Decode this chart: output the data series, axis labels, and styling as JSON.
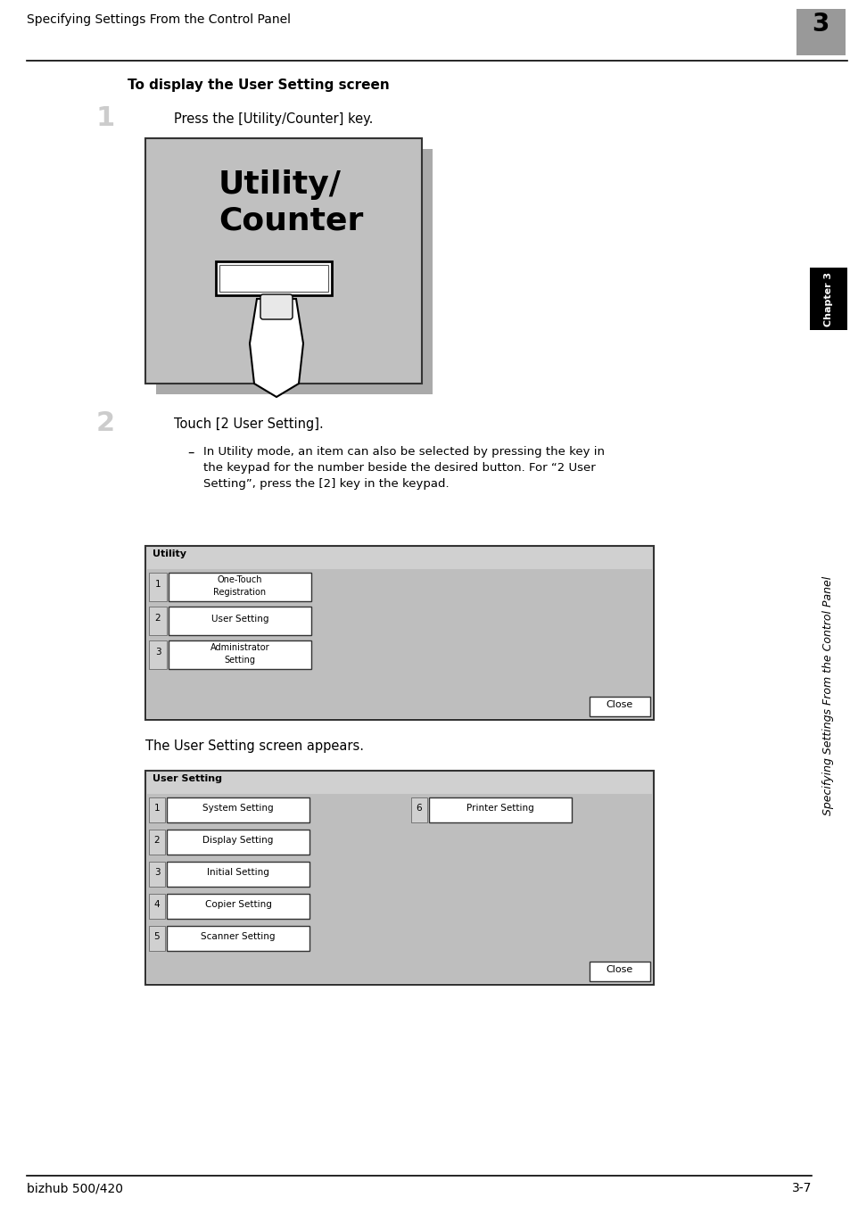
{
  "bg_color": "#ffffff",
  "header_text": "Specifying Settings From the Control Panel",
  "header_chapter": "3",
  "footer_left": "bizhub 500/420",
  "footer_right": "3-7",
  "title_bold": "To display the User Setting screen",
  "step1_num": "1",
  "step1_text": "Press the [Utility/Counter] key.",
  "step2_num": "2",
  "step2_text": "Touch [2 User Setting].",
  "step2_sub_dash": "–",
  "step2_sub_lines": [
    "In Utility mode, an item can also be selected by pressing the key in",
    "the keypad for the number beside the desired button. For “2 User",
    "Setting”, press the [2] key in the keypad."
  ],
  "utility_label1": "Utility/",
  "utility_label2": "Counter",
  "utility_menu_title": "Utility",
  "utility_menu_items": [
    "One-Touch\nRegistration",
    "User Setting",
    "Administrator\nSetting"
  ],
  "user_setting_title": "User Setting",
  "user_setting_left": [
    "System Setting",
    "Display Setting",
    "Initial Setting",
    "Copier Setting",
    "Scanner Setting"
  ],
  "user_setting_right_num": "6",
  "user_setting_right_item": "Printer Setting",
  "appears_text": "The User Setting screen appears.",
  "sidebar_text": "Specifying Settings From the Control Panel",
  "sidebar_chapter": "Chapter 3",
  "sidebar_bg": "#000000",
  "sidebar_chapter_color": "#ffffff",
  "step_num_color": "#cccccc",
  "screen_bg": "#c8c8c8",
  "screen_border": "#000000",
  "menu_bg": "#d8d8d8",
  "menu_item_bg": "#ffffff",
  "menu_item_border": "#555555",
  "close_btn_bg": "#ffffff",
  "close_btn_border": "#555555"
}
